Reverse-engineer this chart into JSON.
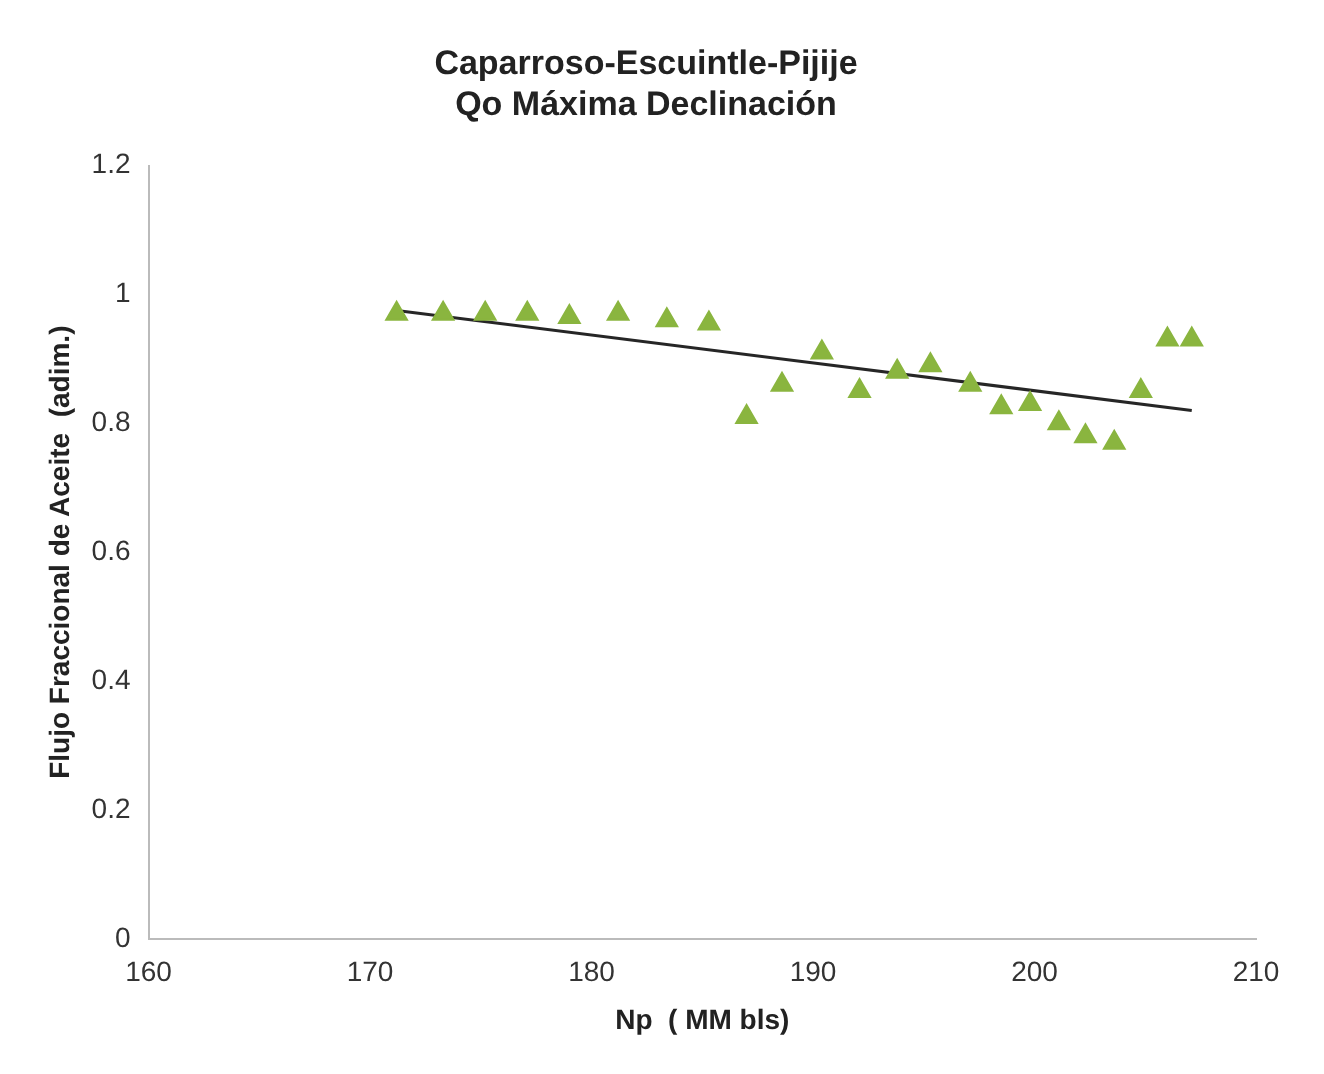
{
  "chart_data": {
    "type": "scatter",
    "title": "Caparroso-Escuintle-Pijije\nQo Máxima Declinación",
    "xlabel": "Np  ( MM bls)",
    "ylabel": "Flujo Fraccional de Aceite  (adim.)",
    "xlim": [
      160,
      210
    ],
    "xticks": [
      160,
      170,
      180,
      190,
      200,
      210
    ],
    "ylim": [
      0,
      1.2
    ],
    "yticks": [
      0,
      0.2,
      0.4,
      0.6,
      0.8,
      1,
      1.2
    ],
    "grid": false,
    "legend": false,
    "marker": "triangle",
    "series": [
      {
        "type": "scatter",
        "color": "#8ab53f",
        "x": [
          171.2,
          173.3,
          175.2,
          177.1,
          179.0,
          181.2,
          183.4,
          185.3,
          187.0,
          188.6,
          190.4,
          192.1,
          193.8,
          195.3,
          197.1,
          198.5,
          199.8,
          201.1,
          202.3,
          203.6,
          204.8,
          206.0,
          207.1
        ],
        "values": [
          0.97,
          0.97,
          0.97,
          0.97,
          0.965,
          0.97,
          0.96,
          0.955,
          0.81,
          0.86,
          0.91,
          0.85,
          0.88,
          0.89,
          0.86,
          0.825,
          0.83,
          0.8,
          0.78,
          0.77,
          0.85,
          0.93,
          0.93
        ]
      },
      {
        "type": "line",
        "color": "#262626",
        "x": [
          171.2,
          207.1
        ],
        "values": [
          0.975,
          0.82
        ],
        "marker": "none"
      }
    ]
  }
}
